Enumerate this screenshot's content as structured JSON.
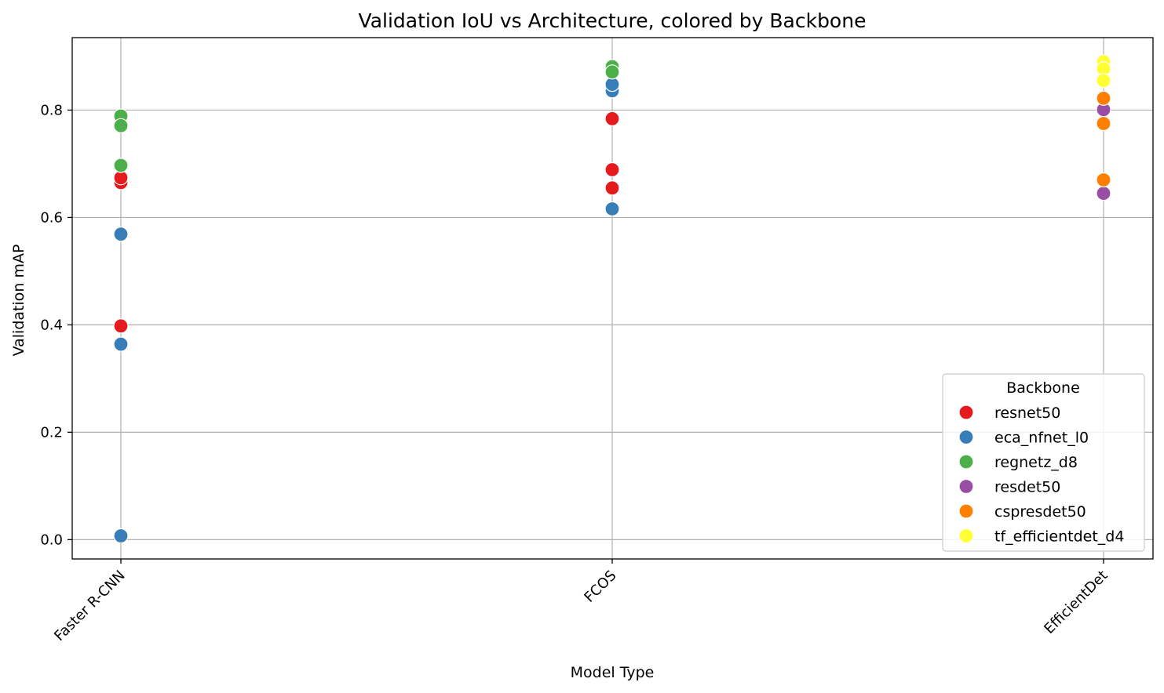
{
  "chart_data": {
    "type": "scatter",
    "title": "Validation IoU vs Architecture, colored by Backbone",
    "xlabel": "Model Type",
    "ylabel": "Validation mAP",
    "categories": [
      "Faster R-CNN",
      "FCOS",
      "EfficientDet"
    ],
    "ylim": [
      -0.036,
      0.935
    ],
    "yticks": [
      "0.0",
      "0.2",
      "0.4",
      "0.6",
      "0.8"
    ],
    "grid": true,
    "legend": {
      "title": "Backbone",
      "placement": "bottom-right",
      "entries": [
        "resnet50",
        "eca_nfnet_l0",
        "regnetz_d8",
        "resdet50",
        "cspresdet50",
        "tf_efficientdet_d4"
      ]
    },
    "series": [
      {
        "name": "resnet50",
        "color": "#e41a1c",
        "points": [
          {
            "x": "Faster R-CNN",
            "y": 0.665
          },
          {
            "x": "Faster R-CNN",
            "y": 0.674
          },
          {
            "x": "Faster R-CNN",
            "y": 0.398
          },
          {
            "x": "FCOS",
            "y": 0.784
          },
          {
            "x": "FCOS",
            "y": 0.689
          },
          {
            "x": "FCOS",
            "y": 0.655
          }
        ]
      },
      {
        "name": "eca_nfnet_l0",
        "color": "#377eb8",
        "points": [
          {
            "x": "Faster R-CNN",
            "y": 0.569
          },
          {
            "x": "Faster R-CNN",
            "y": 0.364
          },
          {
            "x": "Faster R-CNN",
            "y": 0.007
          },
          {
            "x": "FCOS",
            "y": 0.836
          },
          {
            "x": "FCOS",
            "y": 0.848
          },
          {
            "x": "FCOS",
            "y": 0.616
          }
        ]
      },
      {
        "name": "regnetz_d8",
        "color": "#4daf4a",
        "points": [
          {
            "x": "Faster R-CNN",
            "y": 0.789
          },
          {
            "x": "Faster R-CNN",
            "y": 0.771
          },
          {
            "x": "Faster R-CNN",
            "y": 0.697
          },
          {
            "x": "FCOS",
            "y": 0.881
          },
          {
            "x": "FCOS",
            "y": 0.871
          }
        ]
      },
      {
        "name": "resdet50",
        "color": "#984ea3",
        "points": [
          {
            "x": "EfficientDet",
            "y": 0.801
          },
          {
            "x": "EfficientDet",
            "y": 0.645
          }
        ]
      },
      {
        "name": "cspresdet50",
        "color": "#ff7f00",
        "points": [
          {
            "x": "EfficientDet",
            "y": 0.822
          },
          {
            "x": "EfficientDet",
            "y": 0.775
          },
          {
            "x": "EfficientDet",
            "y": 0.67
          }
        ]
      },
      {
        "name": "tf_efficientdet_d4",
        "color": "#ffff33",
        "points": [
          {
            "x": "EfficientDet",
            "y": 0.89
          },
          {
            "x": "EfficientDet",
            "y": 0.877
          },
          {
            "x": "EfficientDet",
            "y": 0.855
          }
        ]
      }
    ]
  }
}
